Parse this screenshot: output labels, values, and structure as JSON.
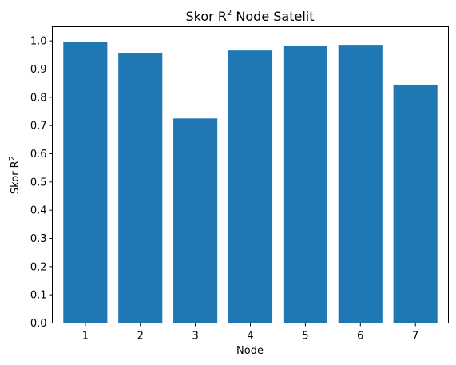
{
  "chart_data": {
    "type": "bar",
    "title": "Skor R",
    "title_suffix": " Node Satelit",
    "title_superscript": "2",
    "xlabel": "Node",
    "ylabel": "Skor R",
    "ylabel_superscript": "2",
    "categories": [
      "1",
      "2",
      "3",
      "4",
      "5",
      "6",
      "7"
    ],
    "values": [
      0.995,
      0.958,
      0.725,
      0.966,
      0.983,
      0.986,
      0.845
    ],
    "ylim": [
      0,
      1.05
    ],
    "yticks": [
      "0.0",
      "0.1",
      "0.2",
      "0.3",
      "0.4",
      "0.5",
      "0.6",
      "0.7",
      "0.8",
      "0.9",
      "1.0"
    ],
    "bar_color": "#1f77b4",
    "grid": false,
    "legend": "none"
  }
}
